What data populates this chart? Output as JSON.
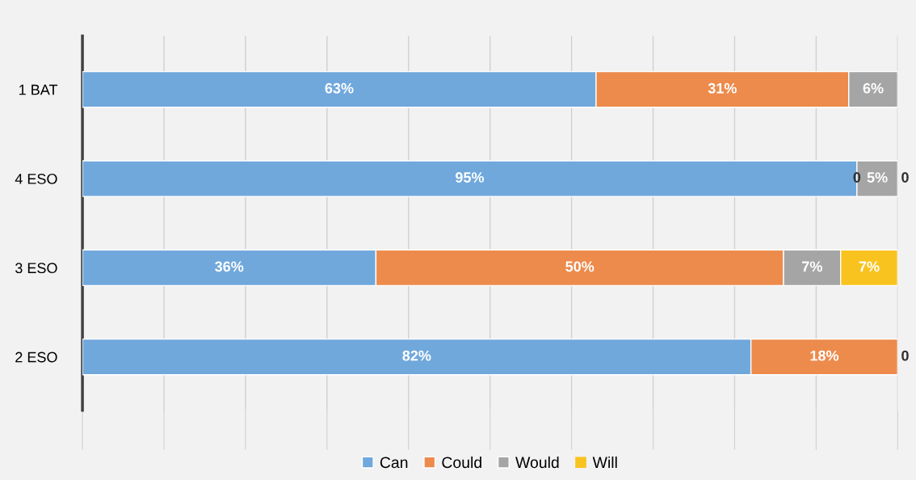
{
  "chart_data": {
    "type": "bar",
    "orientation": "horizontal",
    "stacked": true,
    "categories": [
      "1 BAT",
      "4 ESO",
      "3 ESO",
      "2 ESO"
    ],
    "xlim": [
      0,
      100
    ],
    "xticks": [
      {
        "value": 0,
        "label": null
      },
      {
        "value": 10,
        "label": null
      },
      {
        "value": 20,
        "label": null
      },
      {
        "value": 30,
        "label": null
      },
      {
        "value": 40,
        "label": null
      },
      {
        "value": 50,
        "label": null
      },
      {
        "value": 60,
        "label": null
      },
      {
        "value": 70,
        "label": null
      },
      {
        "value": 80,
        "label": null
      },
      {
        "value": 90,
        "label": null
      },
      {
        "value": 100,
        "label": null
      }
    ],
    "grid": "x",
    "legend": "bottom",
    "series": [
      {
        "name": "Can",
        "color": "#70a8dc",
        "values": [
          63,
          95,
          36,
          82
        ],
        "value_labels": [
          "63%",
          "95%",
          "36%",
          "82%"
        ]
      },
      {
        "name": "Could",
        "color": "#ed8b4c",
        "values": [
          31,
          0,
          50,
          18
        ],
        "value_labels": [
          "31%",
          "0",
          "50%",
          "18%"
        ]
      },
      {
        "name": "Would",
        "color": "#a5a5a5",
        "values": [
          6,
          5,
          7,
          0
        ],
        "value_labels": [
          "6%",
          "5%",
          "7%",
          null
        ]
      },
      {
        "name": "Will",
        "color": "#f9c31f",
        "values": [
          0,
          0,
          7,
          0
        ],
        "value_labels": [
          null,
          "0",
          "7%",
          "0"
        ]
      }
    ]
  }
}
